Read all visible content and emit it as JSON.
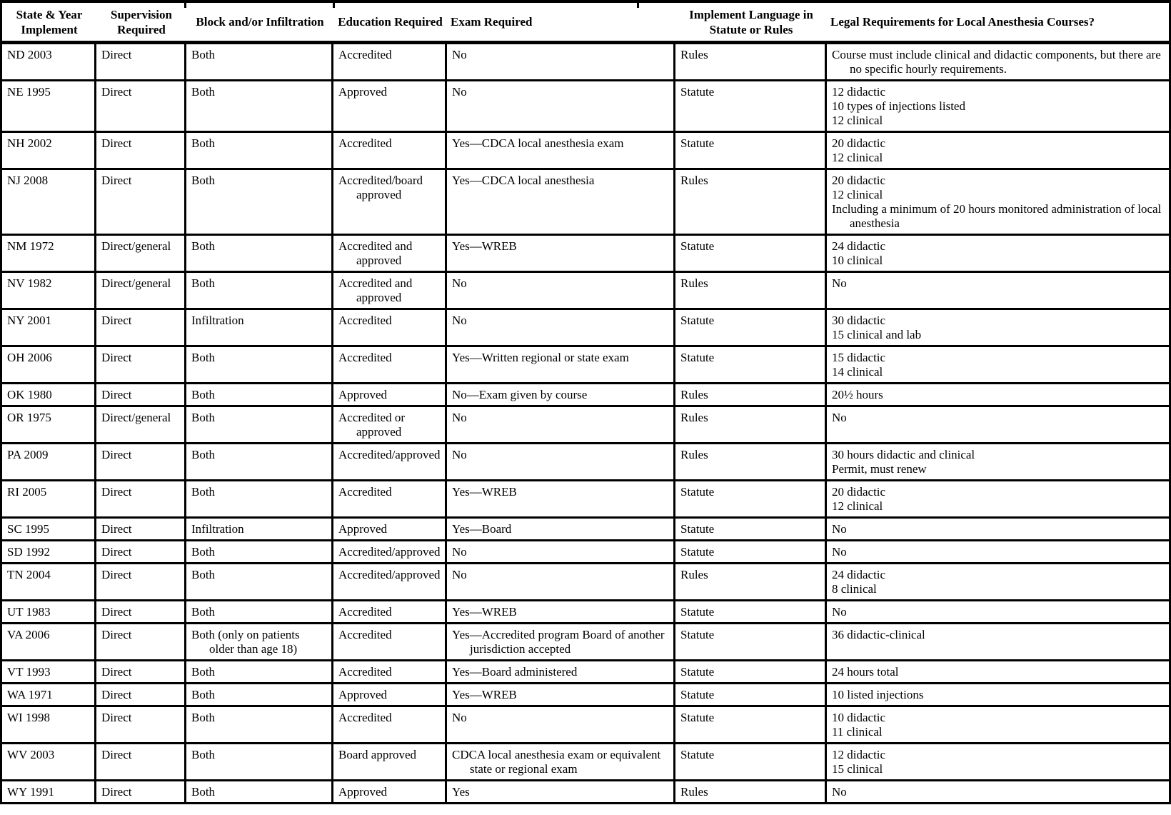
{
  "page": {
    "background": "#ffffff",
    "rule_color": "#000000"
  },
  "table": {
    "headers": [
      {
        "id": "state",
        "label": "State & Year Implement"
      },
      {
        "id": "supervision",
        "label": "Supervision Required"
      },
      {
        "id": "block",
        "label": "Block and/or Infiltration"
      },
      {
        "id": "education",
        "label": "Education Required"
      },
      {
        "id": "exam",
        "label": "Exam Required"
      },
      {
        "id": "language",
        "label": "Implement Language in Statute or Rules"
      },
      {
        "id": "legal",
        "label": "Legal Requirements for Local Anesthesia Courses?"
      }
    ],
    "rows": [
      {
        "state": "ND 2003",
        "supervision": "Direct",
        "block": "Both",
        "education": "Accredited",
        "exam": "No",
        "language": "Rules",
        "legal": [
          "Course must include clinical and didactic components, but there are no specific hourly requirements."
        ]
      },
      {
        "state": "NE 1995",
        "supervision": "Direct",
        "block": "Both",
        "education": "Approved",
        "exam": "No",
        "language": "Statute",
        "legal": [
          "12 didactic",
          "10 types of injections listed",
          "12 clinical"
        ]
      },
      {
        "state": "NH 2002",
        "supervision": "Direct",
        "block": "Both",
        "education": "Accredited",
        "exam": "Yes—CDCA local anesthesia exam",
        "language": "Statute",
        "legal": [
          "20 didactic",
          "12 clinical"
        ]
      },
      {
        "state": "NJ 2008",
        "supervision": "Direct",
        "block": "Both",
        "education": "Accredited/board approved",
        "exam": "Yes—CDCA local anesthesia",
        "language": "Rules",
        "legal": [
          "20 didactic",
          "12 clinical",
          "Including a minimum of 20 hours monitored administration of local anesthesia"
        ]
      },
      {
        "state": "NM 1972",
        "supervision": "Direct/general",
        "block": "Both",
        "education": "Accredited and approved",
        "exam": "Yes—WREB",
        "language": "Statute",
        "legal": [
          "24 didactic",
          "10 clinical"
        ]
      },
      {
        "state": "NV 1982",
        "supervision": "Direct/general",
        "block": "Both",
        "education": "Accredited and approved",
        "exam": "No",
        "language": "Rules",
        "legal": [
          "No"
        ]
      },
      {
        "state": "NY 2001",
        "supervision": "Direct",
        "block": "Infiltration",
        "education": "Accredited",
        "exam": "No",
        "language": "Statute",
        "legal": [
          "30 didactic",
          "15 clinical and lab"
        ]
      },
      {
        "state": "OH 2006",
        "supervision": "Direct",
        "block": "Both",
        "education": "Accredited",
        "exam": "Yes—Written regional or state exam",
        "language": "Statute",
        "legal": [
          "15 didactic",
          "14 clinical"
        ]
      },
      {
        "state": "OK 1980",
        "supervision": "Direct",
        "block": "Both",
        "education": "Approved",
        "exam": "No—Exam given by course",
        "language": "Rules",
        "legal": [
          "20½ hours"
        ]
      },
      {
        "state": "OR 1975",
        "supervision": "Direct/general",
        "block": "Both",
        "education": "Accredited or approved",
        "exam": "No",
        "language": "Rules",
        "legal": [
          "No"
        ]
      },
      {
        "state": "PA 2009",
        "supervision": "Direct",
        "block": "Both",
        "education": "Accredited/approved",
        "exam": "No",
        "language": "Rules",
        "legal": [
          "30 hours didactic and clinical",
          "Permit, must renew"
        ]
      },
      {
        "state": "RI 2005",
        "supervision": "Direct",
        "block": "Both",
        "education": "Accredited",
        "exam": "Yes—WREB",
        "language": "Statute",
        "legal": [
          "20 didactic",
          "12 clinical"
        ]
      },
      {
        "state": "SC 1995",
        "supervision": "Direct",
        "block": "Infiltration",
        "education": "Approved",
        "exam": "Yes—Board",
        "language": "Statute",
        "legal": [
          "No"
        ]
      },
      {
        "state": "SD 1992",
        "supervision": "Direct",
        "block": "Both",
        "education": "Accredited/approved",
        "exam": "No",
        "language": "Statute",
        "legal": [
          "No"
        ]
      },
      {
        "state": "TN 2004",
        "supervision": "Direct",
        "block": "Both",
        "education": "Accredited/approved",
        "exam": "No",
        "language": "Rules",
        "legal": [
          "24 didactic",
          "8 clinical"
        ]
      },
      {
        "state": "UT 1983",
        "supervision": "Direct",
        "block": "Both",
        "education": "Accredited",
        "exam": "Yes—WREB",
        "language": "Statute",
        "legal": [
          "No"
        ]
      },
      {
        "state": "VA 2006",
        "supervision": "Direct",
        "block": "Both (only on patients older than age 18)",
        "education": "Accredited",
        "exam": "Yes—Accredited program Board of another jurisdiction accepted",
        "language": "Statute",
        "legal": [
          "36 didactic-clinical"
        ]
      },
      {
        "state": "VT 1993",
        "supervision": "Direct",
        "block": "Both",
        "education": "Accredited",
        "exam": "Yes—Board administered",
        "language": "Statute",
        "legal": [
          "24 hours total"
        ]
      },
      {
        "state": "WA 1971",
        "supervision": "Direct",
        "block": "Both",
        "education": "Approved",
        "exam": "Yes—WREB",
        "language": "Statute",
        "legal": [
          "10 listed injections"
        ]
      },
      {
        "state": "WI 1998",
        "supervision": "Direct",
        "block": "Both",
        "education": "Accredited",
        "exam": "No",
        "language": "Statute",
        "legal": [
          "10 didactic",
          "11 clinical"
        ]
      },
      {
        "state": "WV 2003",
        "supervision": "Direct",
        "block": "Both",
        "education": "Board approved",
        "exam": "CDCA local anesthesia exam or equivalent state or regional exam",
        "language": "Statute",
        "legal": [
          "12 didactic",
          "15 clinical"
        ]
      },
      {
        "state": "WY 1991",
        "supervision": "Direct",
        "block": "Both",
        "education": "Approved",
        "exam": "Yes",
        "language": "Rules",
        "legal": [
          "No"
        ]
      }
    ]
  }
}
